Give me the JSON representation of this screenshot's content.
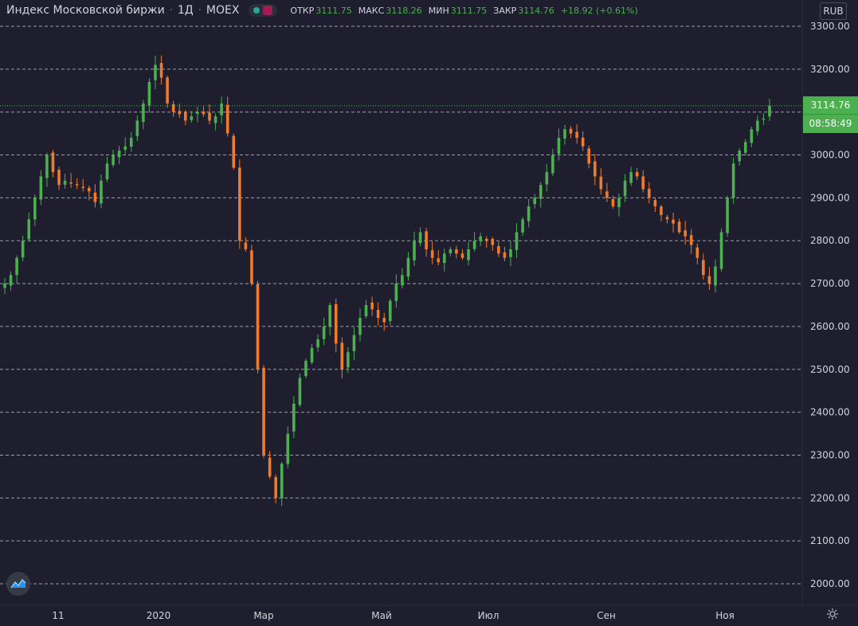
{
  "header": {
    "title": "Индекс Московской биржи",
    "interval": "1Д",
    "exchange": "MOEX",
    "ohlc": {
      "open_label": "ОТКР",
      "open": "3111.75",
      "high_label": "МАКС",
      "high": "3118.26",
      "low_label": "МИН",
      "low": "3111.75",
      "close_label": "ЗАКР",
      "close": "3114.76",
      "change": "+18.92 (+0.61%)"
    }
  },
  "currency_button": "RUB",
  "last_price_label": "3114.76",
  "countdown": "08:58:49",
  "colors": {
    "background": "#1e1e2e",
    "up": "#4caf50",
    "down": "#ef7b2b",
    "grid": "#b2b5be",
    "text": "#d1d4dc",
    "badge": "#4caf50"
  },
  "chart_data": {
    "type": "candlestick",
    "y_axis": {
      "ticks": [
        3300,
        3200,
        3100,
        3000,
        2900,
        2800,
        2700,
        2600,
        2500,
        2400,
        2300,
        2200,
        2100,
        2000
      ],
      "tick_labels": [
        "3300.00",
        "3200.00",
        "3100.00",
        "3000.00",
        "2900.00",
        "2800.00",
        "2700.00",
        "2600.00",
        "2500.00",
        "2400.00",
        "2300.00",
        "2200.00",
        "2100.00",
        "2000.00"
      ],
      "range": [
        1983,
        3320
      ]
    },
    "x_axis": {
      "tick_labels": [
        "11",
        "2020",
        "Мар",
        "Май",
        "Июл",
        "Сен",
        "Ноя"
      ]
    },
    "grid": "horizontal dashed",
    "last_value": 3114.76,
    "close_series_approx": [
      2700,
      2720,
      2760,
      2800,
      2850,
      2900,
      2950,
      3000,
      2960,
      2930,
      2940,
      2935,
      2930,
      2925,
      2915,
      2890,
      2940,
      2980,
      3000,
      3010,
      3020,
      3040,
      3080,
      3120,
      3170,
      3210,
      3180,
      3120,
      3100,
      3095,
      3080,
      3090,
      3100,
      3095,
      3080,
      3090,
      3120,
      3050,
      2970,
      2800,
      2780,
      2700,
      2500,
      2300,
      2250,
      2200,
      2280,
      2350,
      2420,
      2480,
      2520,
      2550,
      2570,
      2600,
      2650,
      2560,
      2500,
      2540,
      2580,
      2620,
      2650,
      2640,
      2620,
      2610,
      2660,
      2700,
      2720,
      2760,
      2800,
      2820,
      2780,
      2760,
      2750,
      2770,
      2780,
      2770,
      2760,
      2780,
      2800,
      2810,
      2800,
      2790,
      2770,
      2760,
      2780,
      2820,
      2850,
      2880,
      2900,
      2930,
      2960,
      3000,
      3040,
      3060,
      3050,
      3040,
      3020,
      2980,
      2950,
      2920,
      2900,
      2880,
      2900,
      2940,
      2960,
      2950,
      2920,
      2900,
      2880,
      2860,
      2850,
      2840,
      2820,
      2810,
      2790,
      2760,
      2720,
      2700,
      2740,
      2820,
      2900,
      2980,
      3010,
      3030,
      3060,
      3080,
      3085,
      3114.76
    ]
  }
}
